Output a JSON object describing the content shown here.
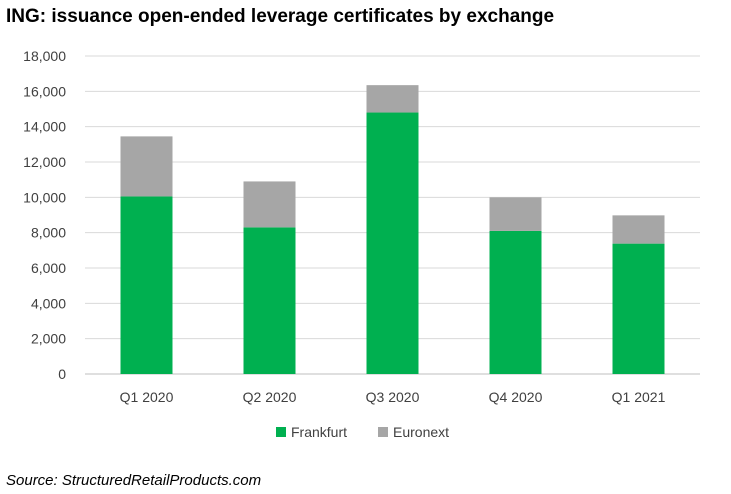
{
  "page": {
    "title": "ING: issuance open-ended leverage certificates by exchange",
    "source": "Source: StructuredRetailProducts.com"
  },
  "chart_data": {
    "type": "bar",
    "stacked": true,
    "title": "ING: issuance open-ended leverage certificates by exchange",
    "xlabel": "",
    "ylabel": "",
    "categories": [
      "Q1 2020",
      "Q2 2020",
      "Q3 2020",
      "Q4 2020",
      "Q1 2021"
    ],
    "series": [
      {
        "name": "Frankfurt",
        "color": "#00b050",
        "values": [
          10050,
          8300,
          14800,
          8100,
          7380
        ]
      },
      {
        "name": "Euronext",
        "color": "#a6a6a6",
        "values": [
          3400,
          2600,
          1550,
          1900,
          1600
        ]
      }
    ],
    "ylim": [
      0,
      18000
    ],
    "yticks": [
      0,
      2000,
      4000,
      6000,
      8000,
      10000,
      12000,
      14000,
      16000,
      18000
    ],
    "ytick_labels": [
      "0",
      "2,000",
      "4,000",
      "6,000",
      "8,000",
      "10,000",
      "12,000",
      "14,000",
      "16,000",
      "18,000"
    ],
    "grid": true,
    "legend": "bottom"
  }
}
